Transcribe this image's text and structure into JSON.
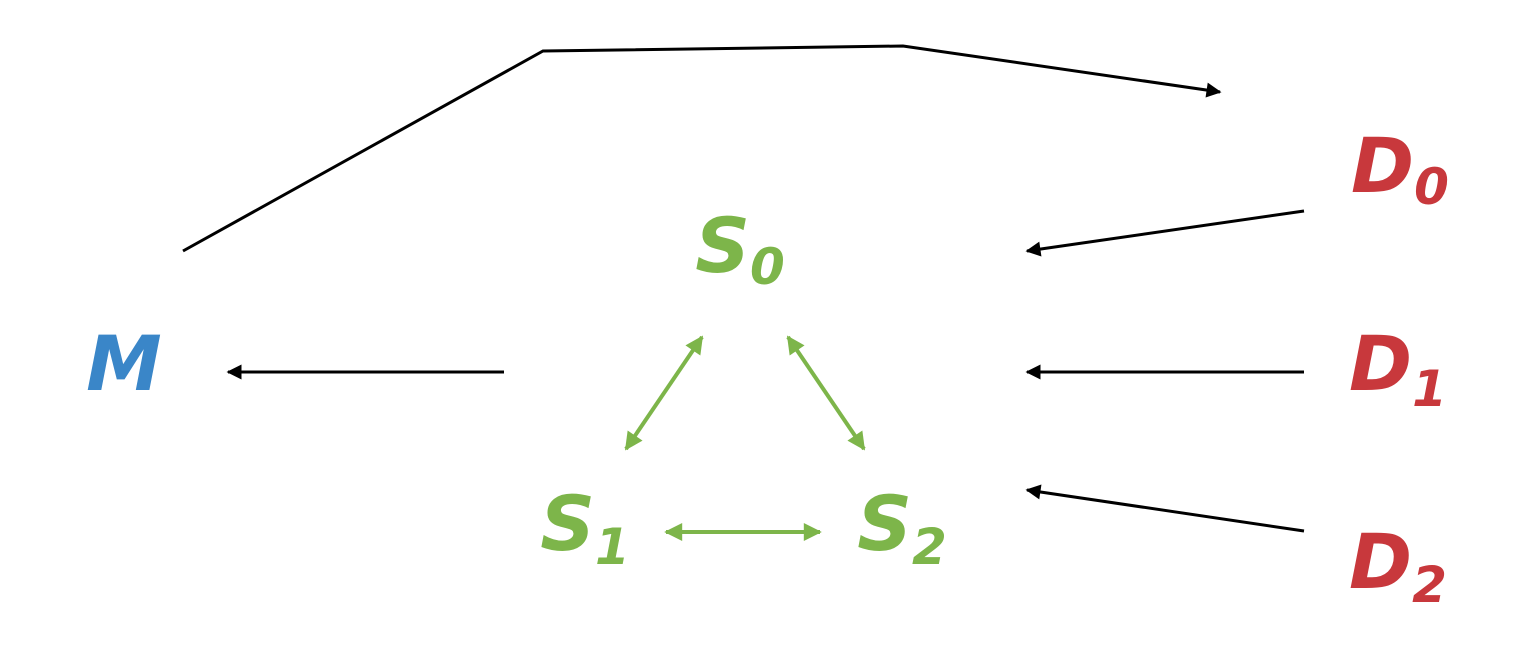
{
  "colors": {
    "memory": "#3a86c8",
    "server": "#7db54a",
    "device": "#c8383c",
    "arrow": "#000000"
  },
  "nodes": {
    "m": {
      "main": "M",
      "sub": ""
    },
    "s0": {
      "main": "S",
      "sub": "0"
    },
    "s1": {
      "main": "S",
      "sub": "1"
    },
    "s2": {
      "main": "S",
      "sub": "2"
    },
    "d0": {
      "main": "D",
      "sub": "0"
    },
    "d1": {
      "main": "D",
      "sub": "1"
    },
    "d2": {
      "main": "D",
      "sub": "2"
    }
  }
}
